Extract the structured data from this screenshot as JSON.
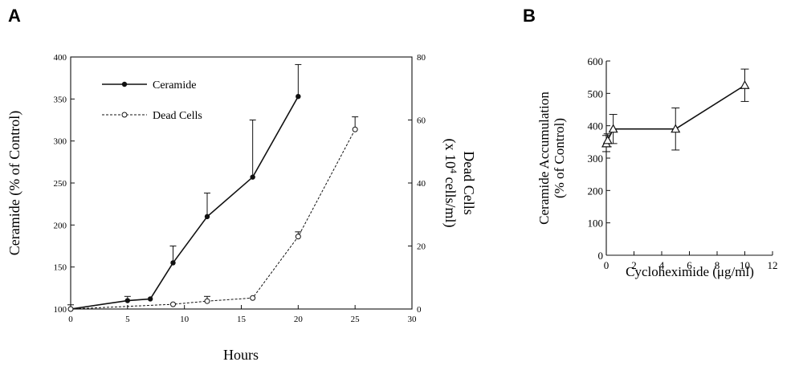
{
  "colors": {
    "ink": "#111111",
    "background": "#ffffff"
  },
  "chart_data": [
    {
      "panel_label": "A",
      "type": "line",
      "xlabel": "Hours",
      "ylabel": "Ceramide (% of Control)",
      "y2label_line1": "Dead Cells",
      "y2label_line2_pre": "(x 10",
      "y2label_line2_sup": "4",
      "y2label_line2_post": " cells/ml)",
      "xlim": [
        0,
        30
      ],
      "ylim": [
        100,
        400
      ],
      "y2lim": [
        0,
        80
      ],
      "xticks": [
        0,
        5,
        10,
        15,
        20,
        25,
        30
      ],
      "yticks": [
        100,
        150,
        200,
        250,
        300,
        350,
        400
      ],
      "y2ticks": [
        0,
        20,
        40,
        60,
        80
      ],
      "legend_position": "top-left",
      "series": [
        {
          "name": "Ceramide",
          "axis": "left",
          "style": "solid",
          "marker": "filled-circle",
          "x": [
            0,
            5,
            7,
            9,
            12,
            16,
            20
          ],
          "y": [
            100,
            110,
            112,
            155,
            210,
            257,
            353
          ],
          "err": [
            5,
            5,
            0,
            20,
            28,
            68,
            38
          ]
        },
        {
          "name": "Dead Cells",
          "axis": "right",
          "style": "dashed",
          "marker": "open-circle",
          "x": [
            0,
            9,
            12,
            16,
            20,
            25
          ],
          "y": [
            0,
            1.5,
            2.5,
            3.5,
            23,
            57
          ],
          "err": [
            0,
            0,
            1.5,
            0,
            1.5,
            4
          ]
        }
      ]
    },
    {
      "panel_label": "B",
      "type": "line",
      "xlabel": "Cycloheximide (μg/ml)",
      "ylabel_line1": "Ceramide Accumulation",
      "ylabel_line2": "(% of Control)",
      "xlim": [
        0,
        12
      ],
      "ylim": [
        0,
        600
      ],
      "xticks": [
        0,
        2,
        4,
        6,
        8,
        10,
        12
      ],
      "yticks": [
        0,
        100,
        200,
        300,
        400,
        500,
        600
      ],
      "series": [
        {
          "marker": "open-triangle",
          "style": "solid",
          "x": [
            0,
            0.1,
            0.5,
            5,
            10
          ],
          "y": [
            345,
            355,
            390,
            390,
            525
          ],
          "err": [
            25,
            20,
            45,
            65,
            50
          ]
        }
      ]
    }
  ]
}
